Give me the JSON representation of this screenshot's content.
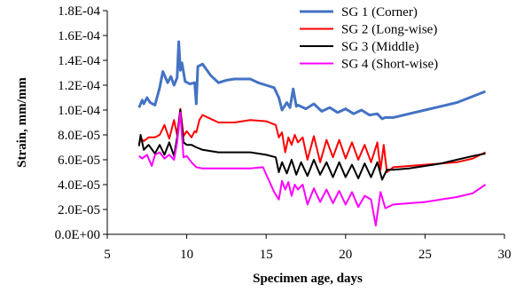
{
  "chart_data": {
    "type": "line",
    "xlabel": "Specimen age, days",
    "ylabel": "Strain, mm/mm",
    "xlim": [
      5,
      30
    ],
    "ylim": [
      0,
      0.00018
    ],
    "x_ticks": [
      {
        "value": 5,
        "label": "5"
      },
      {
        "value": 10,
        "label": "10"
      },
      {
        "value": 15,
        "label": "15"
      },
      {
        "value": 20,
        "label": "20"
      },
      {
        "value": 25,
        "label": "25"
      },
      {
        "value": 30,
        "label": "30"
      }
    ],
    "y_ticks": [
      {
        "value": 0,
        "label": "0.0E+00"
      },
      {
        "value": 2e-05,
        "label": "2.0E-05"
      },
      {
        "value": 4e-05,
        "label": "4.0E-05"
      },
      {
        "value": 6e-05,
        "label": "6.0E-05"
      },
      {
        "value": 8e-05,
        "label": "8.0E-05"
      },
      {
        "value": 0.0001,
        "label": "1.0E-04"
      },
      {
        "value": 0.00012,
        "label": "1.2E-04"
      },
      {
        "value": 0.00014,
        "label": "1.4E-04"
      },
      {
        "value": 0.00016,
        "label": "1.6E-04"
      },
      {
        "value": 0.00018,
        "label": "1.8E-04"
      }
    ],
    "grid": false,
    "legend_position": "top-right",
    "series": [
      {
        "name": "SG 1 (Corner)",
        "color": "#4472C4",
        "x": [
          7.0,
          7.2,
          7.3,
          7.5,
          7.7,
          8.0,
          8.3,
          8.5,
          8.8,
          9.0,
          9.2,
          9.4,
          9.5,
          9.6,
          9.7,
          9.9,
          10.2,
          10.5,
          10.6,
          10.7,
          11.0,
          11.5,
          12.0,
          12.5,
          13.0,
          14.0,
          14.5,
          15.0,
          15.5,
          15.8,
          16.0,
          16.3,
          16.5,
          16.7,
          16.9,
          17.0,
          17.5,
          18.0,
          18.5,
          19.0,
          19.5,
          20.0,
          20.5,
          21.0,
          21.5,
          22.0,
          22.3,
          22.5,
          23.0,
          24.0,
          25.0,
          26.0,
          27.0,
          28.0,
          28.8
        ],
        "y": [
          0.000102,
          0.000108,
          0.000105,
          0.00011,
          0.000106,
          0.000104,
          0.000118,
          0.000131,
          0.000122,
          0.000127,
          0.00012,
          0.000126,
          0.000155,
          0.000132,
          0.000138,
          0.000123,
          0.000121,
          0.000122,
          0.000105,
          0.000135,
          0.000137,
          0.000128,
          0.000122,
          0.000124,
          0.000125,
          0.000125,
          0.000122,
          0.00012,
          0.000118,
          0.00011,
          0.0001,
          0.000106,
          0.000102,
          0.000117,
          0.000103,
          0.000104,
          0.000101,
          0.000105,
          9.9e-05,
          0.000102,
          9.8e-05,
          0.000101,
          9.7e-05,
          0.0001,
          9.6e-05,
          9.7e-05,
          9.3e-05,
          9.4e-05,
          9.4e-05,
          9.7e-05,
          0.0001,
          0.000103,
          0.000106,
          0.000111,
          0.000115
        ]
      },
      {
        "name": "SG 2 (Long-wise)",
        "color": "#FF0000",
        "x": [
          7.0,
          7.1,
          7.3,
          7.6,
          8.0,
          8.3,
          8.6,
          8.9,
          9.2,
          9.4,
          9.6,
          9.8,
          10.0,
          10.3,
          10.5,
          10.6,
          10.8,
          11.0,
          11.5,
          12.0,
          13.0,
          14.0,
          15.0,
          15.6,
          15.8,
          16.0,
          16.2,
          16.4,
          16.6,
          16.8,
          17.0,
          17.3,
          17.6,
          18.0,
          18.4,
          18.8,
          19.2,
          19.6,
          20.0,
          20.4,
          20.8,
          21.2,
          21.6,
          22.0,
          22.2,
          22.4,
          22.6,
          23.0,
          24.0,
          25.0,
          26.0,
          27.0,
          28.0,
          28.8
        ],
        "y": [
          7.3e-05,
          7.7e-05,
          7.5e-05,
          7.8e-05,
          7.8e-05,
          8e-05,
          8.8e-05,
          7.7e-05,
          9.2e-05,
          8e-05,
          0.000101,
          7.9e-05,
          8.3e-05,
          7.8e-05,
          8.3e-05,
          8.2e-05,
          9.2e-05,
          9.6e-05,
          9.3e-05,
          9e-05,
          9e-05,
          9.2e-05,
          9.1e-05,
          8.8e-05,
          7.8e-05,
          8.2e-05,
          6.6e-05,
          7.8e-05,
          7.2e-05,
          8e-05,
          7.4e-05,
          7.8e-05,
          6e-05,
          7.9e-05,
          5.8e-05,
          7.6e-05,
          6.2e-05,
          7.6e-05,
          6.1e-05,
          7.4e-05,
          6e-05,
          7.2e-05,
          5.8e-05,
          7.4e-05,
          5.2e-05,
          7.2e-05,
          5e-05,
          5.4e-05,
          5.5e-05,
          5.6e-05,
          5.7e-05,
          5.8e-05,
          6.1e-05,
          6.6e-05
        ]
      },
      {
        "name": "SG 3 (Middle)",
        "color": "#000000",
        "x": [
          7.0,
          7.1,
          7.3,
          7.6,
          8.0,
          8.3,
          8.6,
          8.9,
          9.2,
          9.4,
          9.6,
          9.8,
          10.0,
          10.3,
          10.6,
          11.0,
          12.0,
          13.0,
          14.0,
          15.0,
          15.6,
          15.8,
          16.0,
          16.3,
          16.6,
          16.9,
          17.2,
          17.6,
          18.0,
          18.4,
          18.8,
          19.2,
          19.6,
          20.0,
          20.4,
          20.8,
          21.2,
          21.6,
          22.0,
          22.3,
          22.6,
          23.0,
          24.0,
          25.0,
          26.0,
          27.0,
          28.0,
          28.8
        ],
        "y": [
          7.1e-05,
          8e-05,
          6.8e-05,
          7.2e-05,
          6.5e-05,
          7.2e-05,
          6.4e-05,
          7.4e-05,
          6.3e-05,
          7.8e-05,
          0.0001,
          7.4e-05,
          7.2e-05,
          7.2e-05,
          7e-05,
          6.8e-05,
          6.6e-05,
          6.6e-05,
          6.6e-05,
          6.4e-05,
          6.2e-05,
          5e-05,
          5.8e-05,
          4.9e-05,
          6e-05,
          4.8e-05,
          5.8e-05,
          4.7e-05,
          6e-05,
          4.8e-05,
          5.8e-05,
          4.6e-05,
          5.8e-05,
          4.6e-05,
          5.6e-05,
          4.5e-05,
          5.7e-05,
          4.6e-05,
          5.8e-05,
          4.4e-05,
          5.2e-05,
          5.2e-05,
          5.3e-05,
          5.5e-05,
          5.7e-05,
          6e-05,
          6.3e-05,
          6.5e-05
        ]
      },
      {
        "name": "SG 4 (Short-wise)",
        "color": "#FF00FF",
        "x": [
          7.0,
          7.2,
          7.5,
          7.8,
          8.0,
          8.3,
          8.6,
          8.9,
          9.2,
          9.4,
          9.6,
          9.8,
          10.0,
          10.3,
          10.6,
          11.0,
          12.0,
          13.0,
          14.0,
          14.8,
          15.5,
          15.8,
          16.0,
          16.2,
          16.4,
          16.6,
          16.8,
          17.0,
          17.3,
          17.6,
          18.0,
          18.4,
          18.8,
          19.2,
          19.6,
          20.0,
          20.4,
          20.8,
          21.2,
          21.6,
          21.9,
          22.2,
          22.5,
          23.0,
          24.0,
          25.0,
          26.0,
          27.0,
          28.0,
          28.8
        ],
        "y": [
          6.3e-05,
          6.1e-05,
          6.4e-05,
          5.5e-05,
          6.4e-05,
          6.6e-05,
          6.1e-05,
          6.4e-05,
          6e-05,
          7.4e-05,
          9.8e-05,
          6.2e-05,
          6.3e-05,
          5.8e-05,
          5.4e-05,
          5.3e-05,
          5.3e-05,
          5.3e-05,
          5.3e-05,
          5.4e-05,
          3.4e-05,
          2.8e-05,
          4.3e-05,
          3.6e-05,
          4.2e-05,
          3.1e-05,
          4e-05,
          3.6e-05,
          4e-05,
          2.4e-05,
          3.7e-05,
          2.6e-05,
          3.6e-05,
          2.5e-05,
          3.5e-05,
          2.4e-05,
          3.4e-05,
          2.2e-05,
          3.1e-05,
          2.8e-05,
          7e-06,
          3.4e-05,
          2.1e-05,
          2.4e-05,
          2.5e-05,
          2.6e-05,
          2.8e-05,
          3e-05,
          3.3e-05,
          4e-05
        ]
      }
    ]
  }
}
